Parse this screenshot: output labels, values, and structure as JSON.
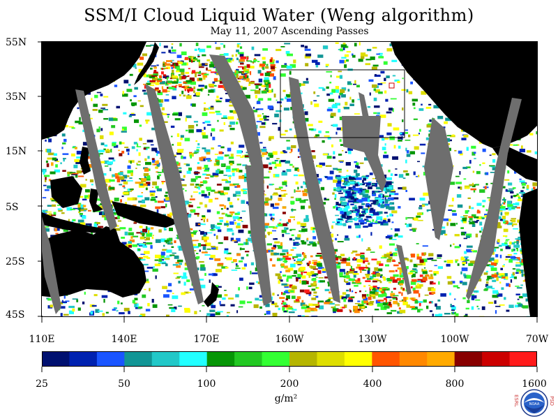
{
  "title": "SSM/I Cloud Liquid Water (Weng algorithm)",
  "subtitle": "May 11, 2007  Ascending Passes",
  "latitude_labels": [
    "55N",
    "35N",
    "15N",
    "5S",
    "25S",
    "45S"
  ],
  "longitude_labels": [
    "110E",
    "140E",
    "170E",
    "160W",
    "130W",
    "100W",
    "70W"
  ],
  "colorbar": {
    "colors": [
      "#001070",
      "#0022b0",
      "#1a55ff",
      "#119595",
      "#22c8c8",
      "#22ffff",
      "#069606",
      "#22c822",
      "#33ff33",
      "#b5b500",
      "#dede00",
      "#ffff00",
      "#ff5500",
      "#ff8800",
      "#ffaa00",
      "#880000",
      "#cc0000",
      "#ff1a1a"
    ],
    "labels": [
      "25",
      "50",
      "100",
      "200",
      "400",
      "800",
      "1600"
    ]
  },
  "units": "g/m²",
  "logo": {
    "name": "noaa-logo",
    "center_text": "NOAA",
    "left_letters": "ESRL",
    "right_letters": "PSD"
  }
}
